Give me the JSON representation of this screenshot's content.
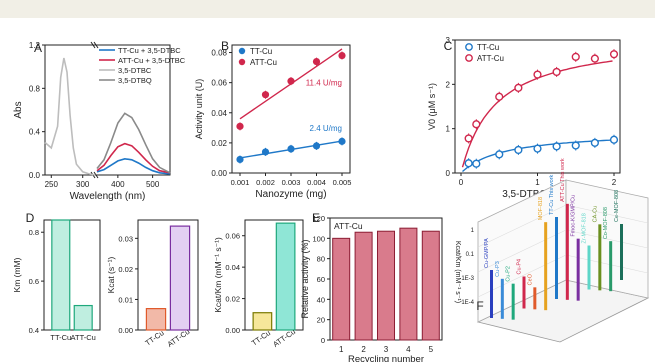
{
  "colors": {
    "blue": "#1f78c8",
    "red": "#d0274c",
    "lightgray": "#bdbdbd",
    "gray": "#8a8a8a",
    "teal": "#1fa87c",
    "purple": "#7a2fa0",
    "orange": "#e05a2b",
    "lilac": "#b58ad6",
    "mint": "#bfeee0",
    "salmon": "#f2b9a8",
    "cyan": "#5ed6c8",
    "pink": "#f0a8b8"
  },
  "chart_data": [
    {
      "panel": "A",
      "type": "line",
      "xlabel": "Wavelength (nm)",
      "ylabel": "Abs",
      "xticks": [
        "250",
        "300",
        "400",
        "500"
      ],
      "yticks": [
        "0.0",
        "0.4",
        "0.8",
        "1.2"
      ],
      "series": [
        {
          "name": "TT-Cu + 3,5-DTBC",
          "color": "#1f78c8",
          "x": [
            340,
            360,
            380,
            400,
            420,
            440,
            460,
            480,
            500,
            520,
            550
          ],
          "y": [
            0.03,
            0.05,
            0.09,
            0.13,
            0.15,
            0.14,
            0.11,
            0.07,
            0.04,
            0.02,
            0.01
          ]
        },
        {
          "name": "ATT-Cu + 3,5-DTBC",
          "color": "#d0274c",
          "x": [
            340,
            360,
            380,
            400,
            420,
            440,
            460,
            480,
            500,
            520,
            550
          ],
          "y": [
            0.04,
            0.09,
            0.18,
            0.26,
            0.29,
            0.27,
            0.21,
            0.14,
            0.08,
            0.04,
            0.02
          ]
        },
        {
          "name": "3,5-DTBC",
          "color": "#bdbdbd",
          "x": [
            240,
            250,
            260,
            265,
            270,
            275,
            280,
            285,
            290,
            300,
            310,
            320
          ],
          "y": [
            0.3,
            0.25,
            0.45,
            0.9,
            1.08,
            0.95,
            0.55,
            0.25,
            0.1,
            0.03,
            0.01,
            0.0
          ]
        },
        {
          "name": "3,5-DTBQ",
          "color": "#8a8a8a",
          "x": [
            340,
            360,
            380,
            400,
            420,
            440,
            460,
            480,
            500,
            520,
            550
          ],
          "y": [
            0.06,
            0.14,
            0.3,
            0.48,
            0.57,
            0.53,
            0.42,
            0.28,
            0.15,
            0.07,
            0.02
          ]
        }
      ]
    },
    {
      "panel": "B",
      "type": "scatter",
      "xlabel": "Nanozyme (mg)",
      "ylabel": "Activity unit (U)",
      "xticks": [
        "0.001",
        "0.002",
        "0.003",
        "0.004",
        "0.005"
      ],
      "yticks": [
        "0.00",
        "0.02",
        "0.04",
        "0.06",
        "0.08"
      ],
      "series": [
        {
          "name": "TT-Cu",
          "color": "#1f78c8",
          "x": [
            0.001,
            0.002,
            0.003,
            0.004,
            0.005
          ],
          "y": [
            0.009,
            0.014,
            0.016,
            0.018,
            0.021
          ],
          "slope_label": "2.4 U/mg"
        },
        {
          "name": "ATT-Cu",
          "color": "#d0274c",
          "x": [
            0.001,
            0.002,
            0.003,
            0.004,
            0.005
          ],
          "y": [
            0.031,
            0.052,
            0.061,
            0.074,
            0.078
          ],
          "slope_label": "11.4 U/mg"
        }
      ]
    },
    {
      "panel": "C",
      "type": "scatter",
      "xlabel": "3,5-DTBC (mM)",
      "ylabel": "V0 (μM s⁻¹)",
      "xticks": [
        "0",
        "1",
        "2"
      ],
      "yticks": [
        "0",
        "1",
        "2",
        "3"
      ],
      "series": [
        {
          "name": "TT-Cu",
          "color": "#1f78c8",
          "x": [
            0.1,
            0.2,
            0.5,
            0.75,
            1.0,
            1.25,
            1.5,
            1.75,
            2.0
          ],
          "y": [
            0.22,
            0.21,
            0.42,
            0.52,
            0.55,
            0.6,
            0.62,
            0.68,
            0.75
          ]
        },
        {
          "name": "ATT-Cu",
          "color": "#d0274c",
          "x": [
            0.1,
            0.2,
            0.5,
            0.75,
            1.0,
            1.25,
            1.5,
            1.75,
            2.0
          ],
          "y": [
            0.78,
            1.1,
            1.72,
            1.92,
            2.22,
            2.28,
            2.62,
            2.58,
            2.68
          ]
        }
      ]
    },
    {
      "panel": "D",
      "type": "bar",
      "subplots": [
        {
          "ylabel": "Km (mM)",
          "yticks": [
            "0.4",
            "0.6",
            "0.8"
          ],
          "categories": [
            "TT-Cu",
            "ATT-Cu"
          ],
          "values": [
            0.85,
            0.5
          ]
        },
        {
          "ylabel": "Kcat (s⁻¹)",
          "yticks": [
            "0.00",
            "0.01",
            "0.02",
            "0.03"
          ],
          "categories": [
            "TT-Cu",
            "ATT-Cu"
          ],
          "values": [
            0.007,
            0.034
          ]
        },
        {
          "ylabel": "Kcat/Km (mM⁻¹ s⁻¹)",
          "yticks": [
            "0.00",
            "0.02",
            "0.04",
            "0.06"
          ],
          "categories": [
            "TT-Cu",
            "ATT-Cu"
          ],
          "values": [
            0.011,
            0.068
          ]
        }
      ]
    },
    {
      "panel": "E",
      "type": "bar",
      "title": "ATT-Cu",
      "xlabel": "Recycling number",
      "ylabel": "Relative activity (%)",
      "categories": [
        "1",
        "2",
        "3",
        "4",
        "5"
      ],
      "values": [
        100,
        106,
        107,
        110,
        107
      ],
      "yticks": [
        "0",
        "20",
        "40",
        "60",
        "80",
        "100",
        "120"
      ]
    },
    {
      "panel": "F",
      "type": "bar",
      "ylabel": "Kcat/Km (mM⁻¹ s⁻¹)",
      "yticks": [
        "1",
        "0.1",
        "1E-3",
        "1E-4"
      ],
      "categories": [
        "Cu-GMP/PA",
        "Cu-P3",
        "Cu-P2",
        "Cu-P4",
        "CeO",
        "MOF-818",
        "TT-Cu This work",
        "ATT-Cu This work",
        "Fmoc-K/GMP/Cu",
        "Zr-MOF-818",
        "CA-Cu",
        "Co-MOF-808",
        "Ce-MOF-808"
      ]
    }
  ],
  "panels": {
    "A": "A",
    "B": "B",
    "C": "C",
    "D": "D",
    "E": "E",
    "F": "F"
  }
}
